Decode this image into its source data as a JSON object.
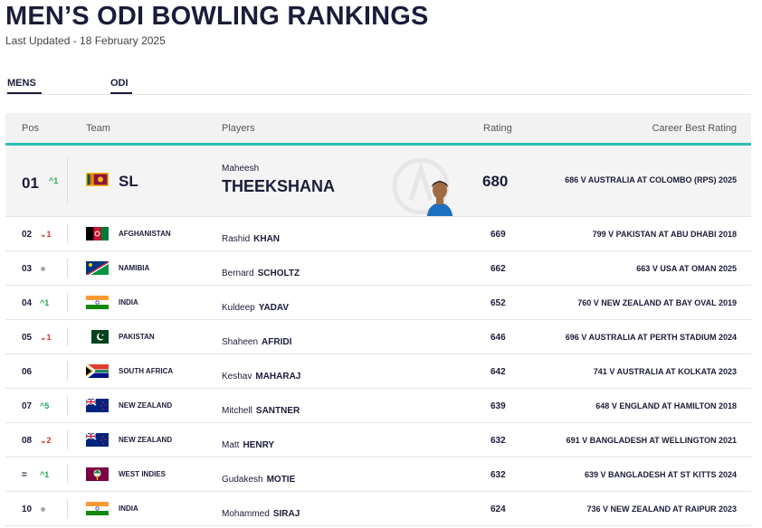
{
  "title": "MEN’S ODI BOWLING RANKINGS",
  "last_updated": "Last Updated - 18 February 2025",
  "tabs": [
    "MENS",
    "ODI"
  ],
  "columns": {
    "pos": "Pos",
    "team": "Team",
    "players": "Players",
    "rating": "Rating",
    "best": "Career Best Rating"
  },
  "hero": {
    "pos": "01",
    "move": "^1",
    "team": "SL",
    "flag": "sri-lanka-flag",
    "first": "Maheesh",
    "last": "THEEKSHANA",
    "rating": "680",
    "best": "686 V AUSTRALIA AT COLOMBO (RPS) 2025"
  },
  "rows": [
    {
      "pos": "02",
      "move": "⌄1",
      "dir": "down",
      "team": "AFGHANISTAN",
      "flag": "afghanistan-flag",
      "first": "Rashid",
      "last": "KHAN",
      "rating": "669",
      "best": "799 V PAKISTAN AT ABU DHABI 2018"
    },
    {
      "pos": "03",
      "move": "",
      "dir": "none",
      "team": "NAMIBIA",
      "flag": "namibia-flag",
      "first": "Bernard",
      "last": "SCHOLTZ",
      "rating": "662",
      "best": "663 V USA AT OMAN 2025"
    },
    {
      "pos": "04",
      "move": "^1",
      "dir": "up",
      "team": "INDIA",
      "flag": "india-flag",
      "first": "Kuldeep",
      "last": "YADAV",
      "rating": "652",
      "best": "760 V NEW ZEALAND AT BAY OVAL 2019"
    },
    {
      "pos": "05",
      "move": "⌄1",
      "dir": "down",
      "team": "PAKISTAN",
      "flag": "pakistan-flag",
      "first": "Shaheen",
      "last": "AFRIDI",
      "rating": "646",
      "best": "696 V AUSTRALIA AT PERTH STADIUM 2024"
    },
    {
      "pos": "06",
      "move": "",
      "dir": "blank",
      "team": "SOUTH AFRICA",
      "flag": "south-africa-flag",
      "first": "Keshav",
      "last": "MAHARAJ",
      "rating": "642",
      "best": "741 V AUSTRALIA AT KOLKATA 2023"
    },
    {
      "pos": "07",
      "move": "^5",
      "dir": "up",
      "team": "NEW ZEALAND",
      "flag": "new-zealand-flag",
      "first": "Mitchell",
      "last": "SANTNER",
      "rating": "639",
      "best": "648 V ENGLAND AT HAMILTON 2018"
    },
    {
      "pos": "08",
      "move": "⌄2",
      "dir": "down",
      "team": "NEW ZEALAND",
      "flag": "new-zealand-flag",
      "first": "Matt",
      "last": "HENRY",
      "rating": "632",
      "best": "691 V BANGLADESH AT WELLINGTON 2021"
    },
    {
      "pos": "=",
      "move": "^1",
      "dir": "up",
      "team": "WEST INDIES",
      "flag": "west-indies-flag",
      "first": "Gudakesh",
      "last": "MOTIE",
      "rating": "632",
      "best": "639 V BANGLADESH AT ST KITTS 2024"
    },
    {
      "pos": "10",
      "move": "",
      "dir": "none",
      "team": "INDIA",
      "flag": "india-flag",
      "first": "Mohammed",
      "last": "SIRAJ",
      "rating": "624",
      "best": "736 V NEW ZEALAND AT RAIPUR 2023"
    }
  ],
  "colors": {
    "navy": "#1b1c3a",
    "accent": "#2cbfb4",
    "up": "#1fa84f",
    "down": "#d3322f"
  }
}
